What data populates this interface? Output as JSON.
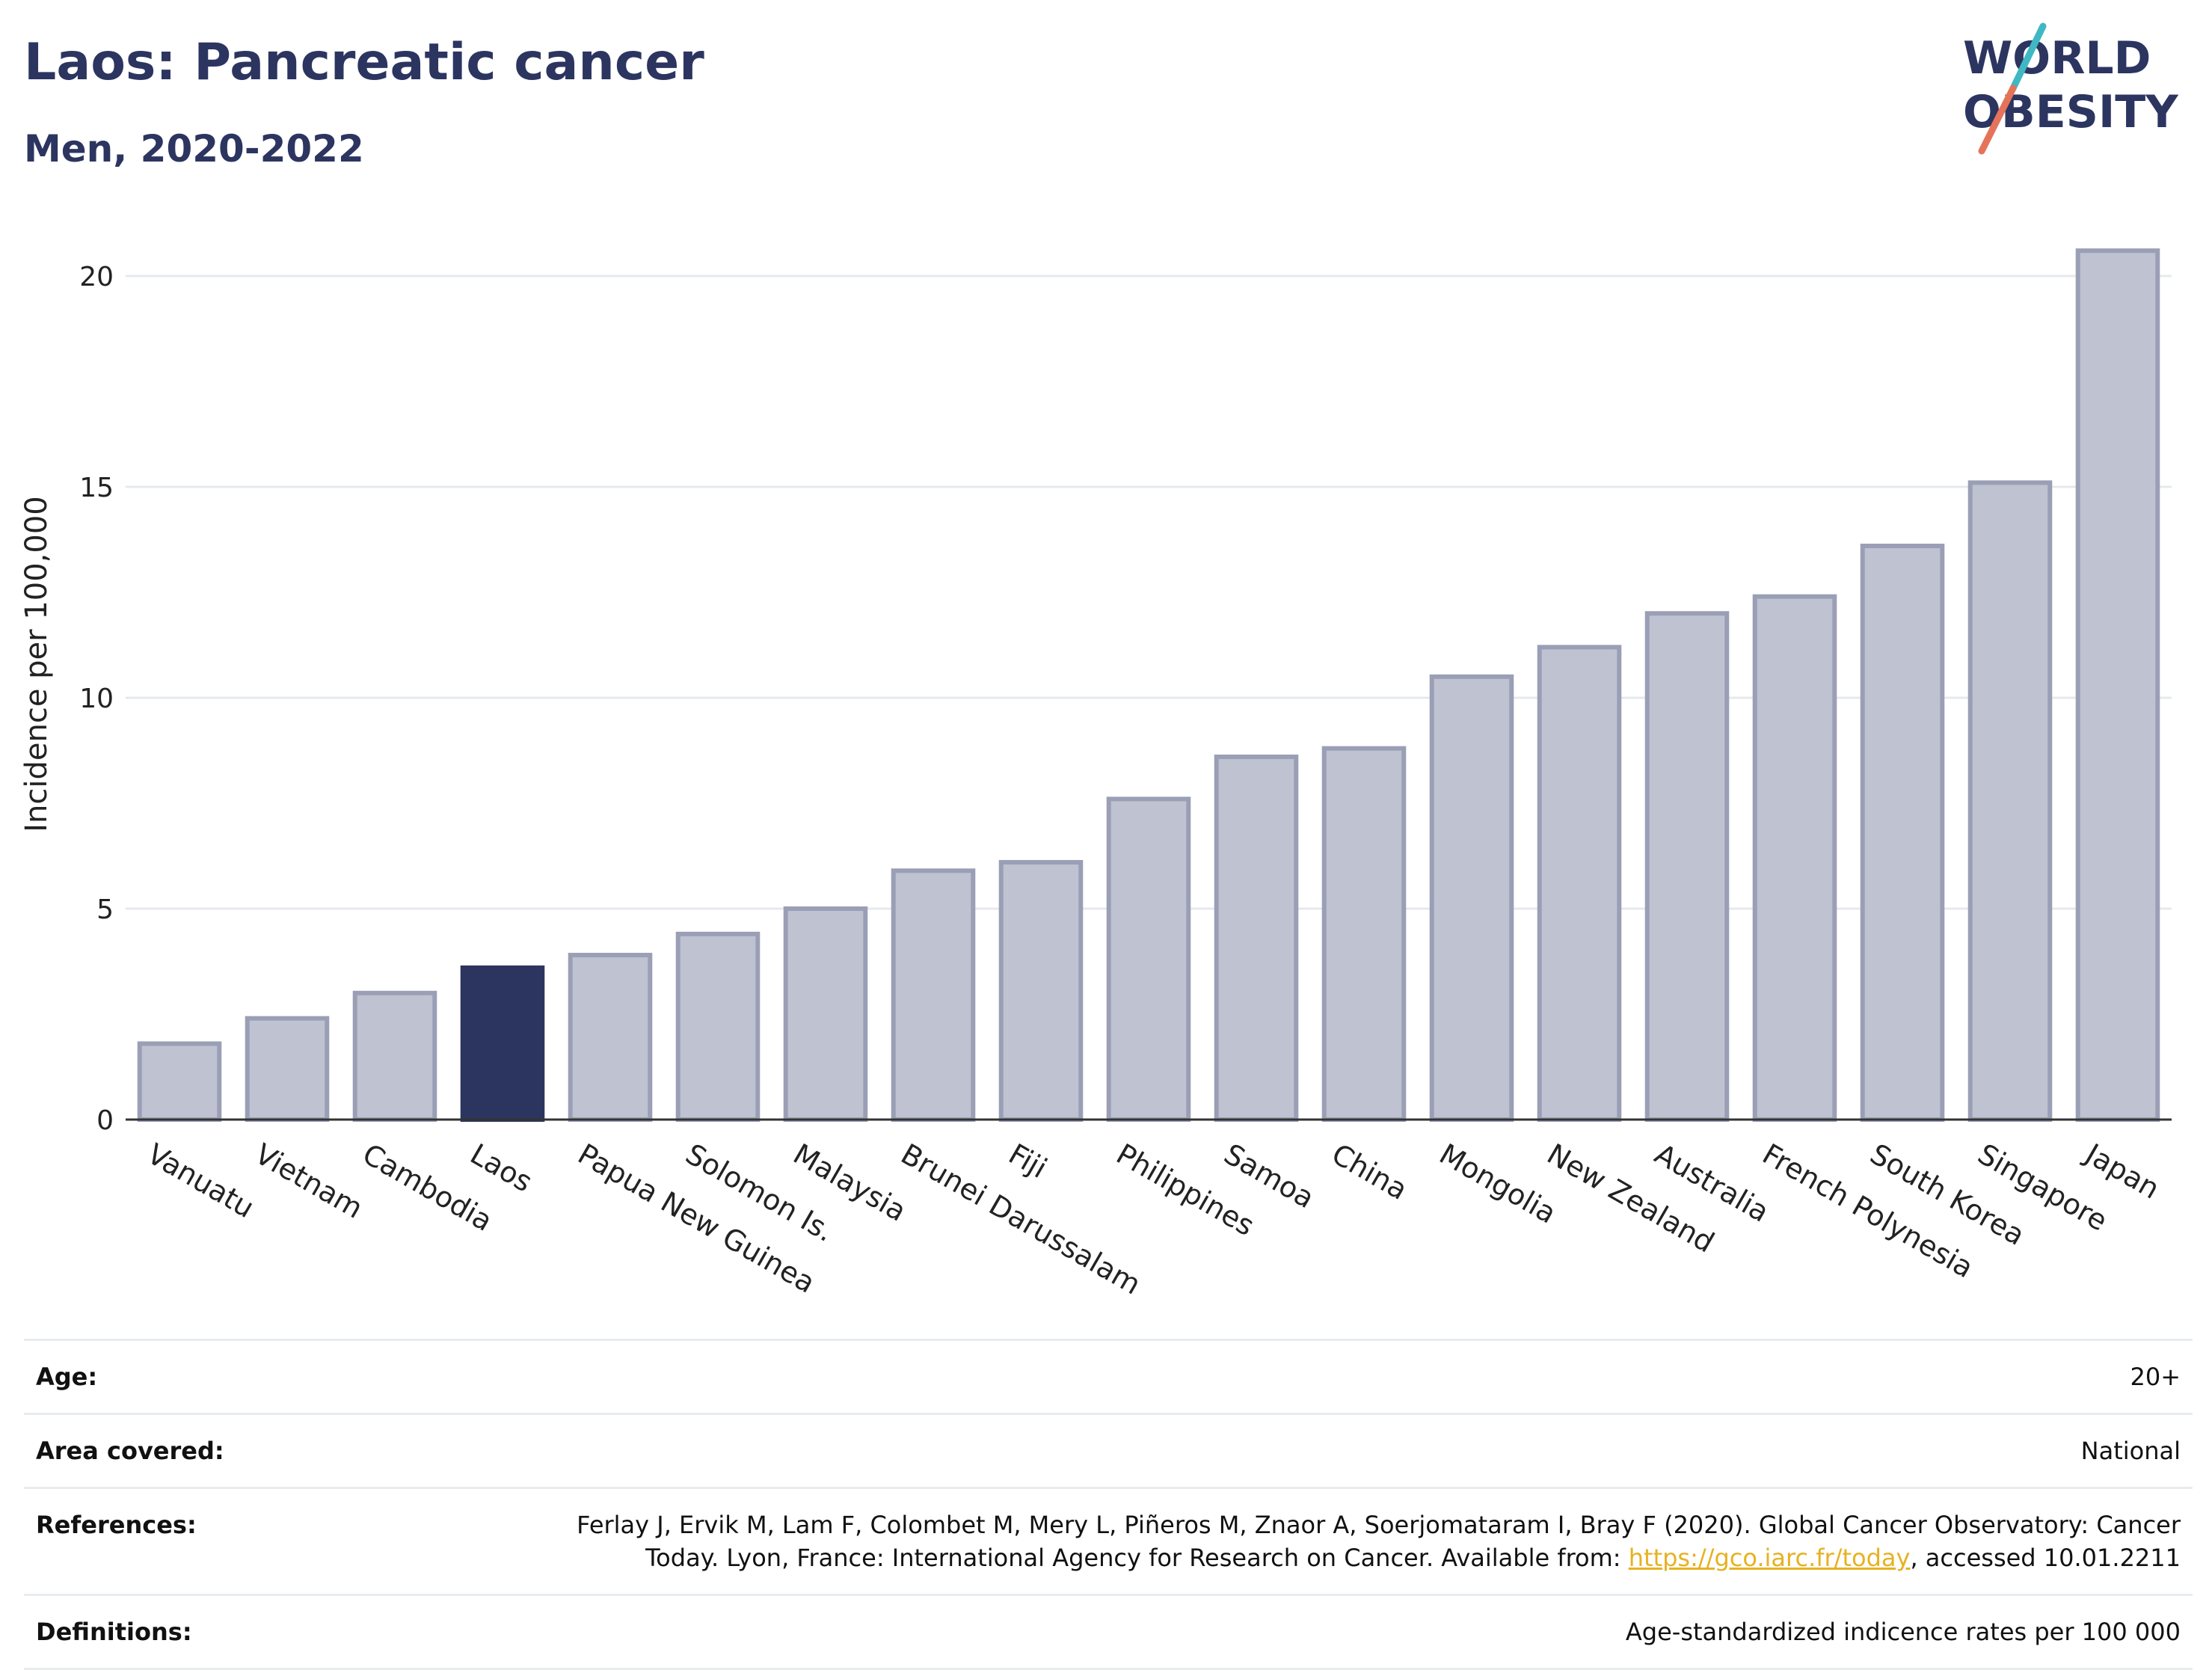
{
  "header": {
    "title": "Laos: Pancreatic cancer",
    "subtitle": "Men, 2020-2022"
  },
  "logo": {
    "line1": "WORLD",
    "line2": "OBESITY",
    "accent_colors": [
      "#3fb8c4",
      "#e5735a"
    ]
  },
  "colors": {
    "highlight_bar": "#2c3560",
    "other_bar_fill": "#bfc2d0",
    "other_bar_stroke": "#9a9fb6",
    "title": "#2c3560",
    "link": "#e6b222"
  },
  "chart_data": {
    "type": "bar",
    "title": "Laos: Pancreatic cancer",
    "subtitle": "Men, 2020-2022",
    "xlabel": "",
    "ylabel": "Incidence per 100,000",
    "ylim": [
      0,
      21.5
    ],
    "yticks": [
      0,
      5,
      10,
      15,
      20
    ],
    "grid": true,
    "highlight": "Laos",
    "categories": [
      "Vanuatu",
      "Vietnam",
      "Cambodia",
      "Laos",
      "Papua New Guinea",
      "Solomon Is.",
      "Malaysia",
      "Brunei Darussalam",
      "Fiji",
      "Philippines",
      "Samoa",
      "China",
      "Mongolia",
      "New Zealand",
      "Australia",
      "French Polynesia",
      "South Korea",
      "Singapore",
      "Japan"
    ],
    "values": [
      1.8,
      2.4,
      3.0,
      3.6,
      3.9,
      4.4,
      5.0,
      5.9,
      6.1,
      7.6,
      8.6,
      8.8,
      10.5,
      11.2,
      12.0,
      12.4,
      13.6,
      15.1,
      20.6
    ]
  },
  "info": {
    "age": {
      "label": "Age:",
      "value": "20+"
    },
    "area": {
      "label": "Area covered:",
      "value": "National"
    },
    "references": {
      "label": "References:",
      "line1": "Ferlay J, Ervik M, Lam F, Colombet M, Mery L, Piñeros M, Znaor A, Soerjomataram I, Bray F (2020). Global Cancer Observatory: Cancer",
      "line2_pre": "Today. Lyon, France: International Agency for Research on Cancer. Available from: ",
      "link": "https://gco.iarc.fr/today",
      "line2_post": ", accessed 10.01.2211"
    },
    "definitions": {
      "label": "Definitions:",
      "value": "Age-standardized indicence rates per 100 000"
    }
  }
}
